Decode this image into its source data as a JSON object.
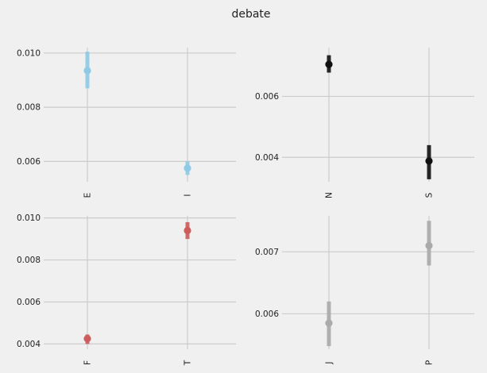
{
  "title": "debate",
  "chart_data": [
    {
      "type": "scatter",
      "subplot": "top-left",
      "categories": [
        "E",
        "I"
      ],
      "values": [
        0.00935,
        0.00575
      ],
      "error_low": [
        0.0087,
        0.0055
      ],
      "error_high": [
        0.01005,
        0.006
      ],
      "yticks": [
        "0.006",
        "0.008",
        "0.010"
      ],
      "ylim": [
        0.00525,
        0.0102
      ],
      "color": "#8ecae6",
      "grid": true
    },
    {
      "type": "scatter",
      "subplot": "top-right",
      "categories": [
        "N",
        "S"
      ],
      "values": [
        0.00705,
        0.00388
      ],
      "error_low": [
        0.00678,
        0.00328
      ],
      "error_high": [
        0.00735,
        0.0044
      ],
      "yticks": [
        "0.004",
        "0.006"
      ],
      "ylim": [
        0.0032,
        0.0076
      ],
      "color": "#111111",
      "grid": true
    },
    {
      "type": "scatter",
      "subplot": "bottom-left",
      "categories": [
        "F",
        "T"
      ],
      "values": [
        0.00425,
        0.0094
      ],
      "error_low": [
        0.004,
        0.009
      ],
      "error_high": [
        0.00445,
        0.0098
      ],
      "yticks": [
        "0.004",
        "0.006",
        "0.008",
        "0.010"
      ],
      "ylim": [
        0.00375,
        0.0101
      ],
      "color": "#cd5c5c",
      "grid": true
    },
    {
      "type": "scatter",
      "subplot": "bottom-right",
      "categories": [
        "J",
        "P"
      ],
      "values": [
        0.00585,
        0.0071
      ],
      "error_low": [
        0.00548,
        0.00678
      ],
      "error_high": [
        0.0062,
        0.0075
      ],
      "yticks": [
        "0.006",
        "0.007"
      ],
      "ylim": [
        0.00543,
        0.00758
      ],
      "color": "#aaaaaa",
      "grid": true
    }
  ]
}
